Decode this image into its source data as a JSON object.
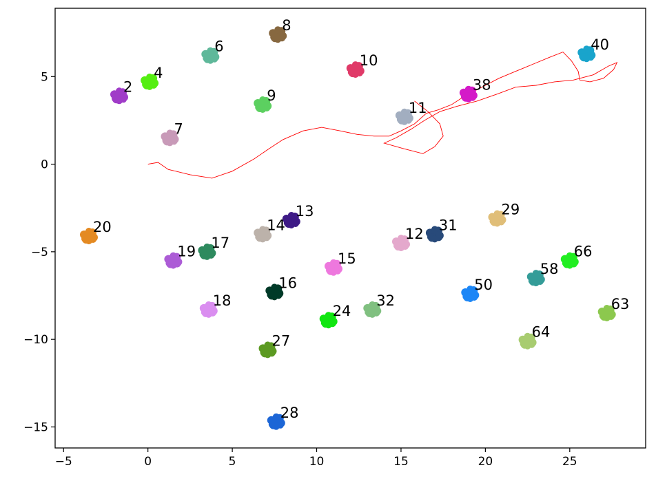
{
  "chart_data": {
    "type": "scatter",
    "title": "",
    "xlabel": "",
    "ylabel": "",
    "xlim": [
      -5.5,
      29.5
    ],
    "ylim": [
      -16.2,
      8.9
    ],
    "x_ticks": [
      {
        "value": -5,
        "label": "−5"
      },
      {
        "value": 0,
        "label": "0"
      },
      {
        "value": 5,
        "label": "5"
      },
      {
        "value": 10,
        "label": "10"
      },
      {
        "value": 15,
        "label": "15"
      },
      {
        "value": 20,
        "label": "20"
      },
      {
        "value": 25,
        "label": "25"
      }
    ],
    "y_ticks": [
      {
        "value": 5,
        "label": "5"
      },
      {
        "value": 0,
        "label": "0"
      },
      {
        "value": -5,
        "label": "−5"
      },
      {
        "value": -10,
        "label": "−10"
      },
      {
        "value": -15,
        "label": "−15"
      }
    ],
    "grid": false,
    "clusters": [
      {
        "label": "2",
        "x": -1.7,
        "y": 3.9,
        "color": "#a03cc8"
      },
      {
        "label": "4",
        "x": 0.1,
        "y": 4.7,
        "color": "#55ee11"
      },
      {
        "label": "6",
        "x": 3.7,
        "y": 6.2,
        "color": "#5fb89a"
      },
      {
        "label": "7",
        "x": 1.3,
        "y": 1.5,
        "color": "#c89ab8"
      },
      {
        "label": "8",
        "x": 7.7,
        "y": 7.4,
        "color": "#876840"
      },
      {
        "label": "9",
        "x": 6.8,
        "y": 3.4,
        "color": "#5cd060"
      },
      {
        "label": "10",
        "x": 12.3,
        "y": 5.4,
        "color": "#e03a68"
      },
      {
        "label": "11",
        "x": 15.2,
        "y": 2.7,
        "color": "#a2aec0"
      },
      {
        "label": "12",
        "x": 15.0,
        "y": -4.5,
        "color": "#e4a8cc"
      },
      {
        "label": "13",
        "x": 8.5,
        "y": -3.2,
        "color": "#3e1a86"
      },
      {
        "label": "14",
        "x": 6.8,
        "y": -4.0,
        "color": "#bcb2aa"
      },
      {
        "label": "15",
        "x": 11.0,
        "y": -5.9,
        "color": "#ee78de"
      },
      {
        "label": "16",
        "x": 7.5,
        "y": -7.3,
        "color": "#003a28"
      },
      {
        "label": "17",
        "x": 3.5,
        "y": -5.0,
        "color": "#2e8a5e"
      },
      {
        "label": "18",
        "x": 3.6,
        "y": -8.3,
        "color": "#da8ef0"
      },
      {
        "label": "19",
        "x": 1.5,
        "y": -5.5,
        "color": "#ac5cd6"
      },
      {
        "label": "20",
        "x": -3.5,
        "y": -4.1,
        "color": "#e48a22"
      },
      {
        "label": "24",
        "x": 10.7,
        "y": -8.9,
        "color": "#11e611"
      },
      {
        "label": "27",
        "x": 7.1,
        "y": -10.6,
        "color": "#5c9a22"
      },
      {
        "label": "28",
        "x": 7.6,
        "y": -14.7,
        "color": "#1c66d6"
      },
      {
        "label": "29",
        "x": 20.7,
        "y": -3.1,
        "color": "#e0be78"
      },
      {
        "label": "31",
        "x": 17.0,
        "y": -4.0,
        "color": "#284a7a"
      },
      {
        "label": "32",
        "x": 13.3,
        "y": -8.3,
        "color": "#80c080"
      },
      {
        "label": "38",
        "x": 19.0,
        "y": 4.0,
        "color": "#d41ac8"
      },
      {
        "label": "40",
        "x": 26.0,
        "y": 6.3,
        "color": "#19a4cc"
      },
      {
        "label": "50",
        "x": 19.1,
        "y": -7.4,
        "color": "#1c86f6"
      },
      {
        "label": "58",
        "x": 23.0,
        "y": -6.5,
        "color": "#349c98"
      },
      {
        "label": "63",
        "x": 27.2,
        "y": -8.5,
        "color": "#8cc84e"
      },
      {
        "label": "64",
        "x": 22.5,
        "y": -10.1,
        "color": "#a8cc70"
      },
      {
        "label": "66",
        "x": 25.0,
        "y": -5.5,
        "color": "#22ee22"
      }
    ],
    "trajectory": {
      "color": "#ff0000",
      "x": [
        0.0,
        0.6,
        1.2,
        2.5,
        3.8,
        5.0,
        6.3,
        7.2,
        8.0,
        9.2,
        10.3,
        11.4,
        12.4,
        13.4,
        14.3,
        15.0,
        15.8,
        16.5,
        17.2,
        18.0,
        18.8,
        19.8,
        20.8,
        21.8,
        22.8,
        23.8,
        24.6,
        25.1,
        25.5,
        25.6,
        26.2,
        27.0,
        27.6,
        27.8,
        27.3,
        26.4,
        25.2,
        24.1,
        23.0,
        21.8,
        20.7,
        19.5,
        18.3,
        17.3,
        16.4,
        15.6,
        14.7,
        14.0,
        15.1,
        16.3,
        17.0,
        17.5,
        17.3,
        16.6,
        15.8
      ],
      "y": [
        0.0,
        0.1,
        -0.3,
        -0.6,
        -0.8,
        -0.4,
        0.3,
        0.9,
        1.4,
        1.9,
        2.1,
        1.9,
        1.7,
        1.6,
        1.6,
        1.9,
        2.3,
        2.9,
        3.1,
        3.4,
        3.9,
        4.4,
        4.9,
        5.3,
        5.7,
        6.1,
        6.4,
        5.9,
        5.3,
        4.8,
        4.7,
        4.9,
        5.4,
        5.8,
        5.6,
        5.1,
        4.8,
        4.7,
        4.5,
        4.4,
        4.0,
        3.6,
        3.3,
        3.0,
        2.5,
        2.0,
        1.5,
        1.2,
        0.9,
        0.6,
        1.0,
        1.6,
        2.3,
        3.0,
        3.6
      ]
    }
  }
}
